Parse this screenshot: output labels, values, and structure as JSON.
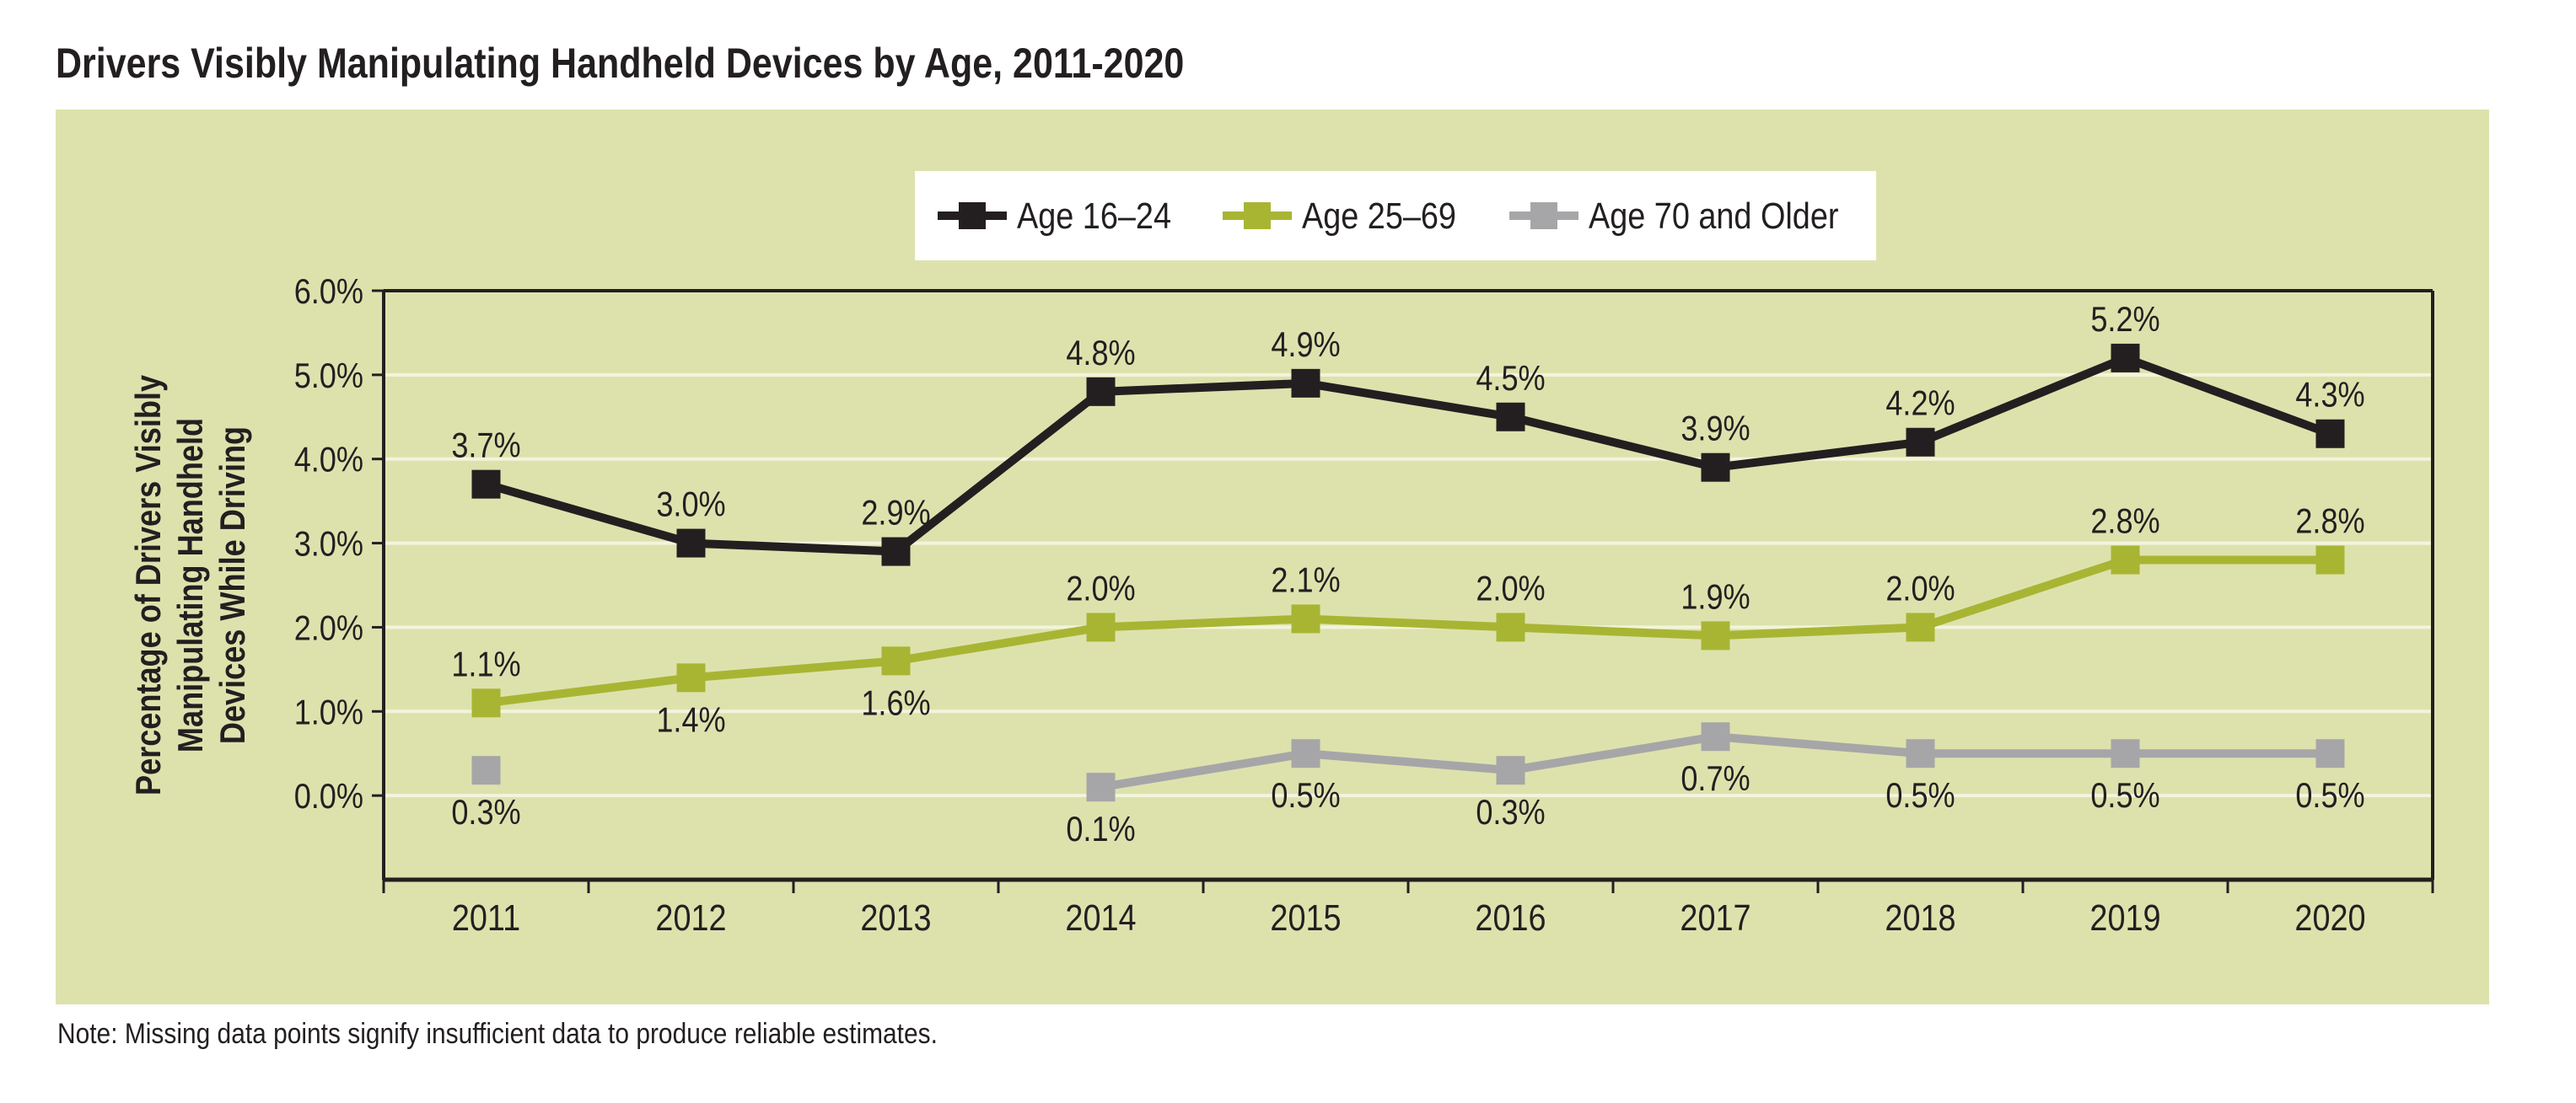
{
  "title": "Drivers Visibly Manipulating Handheld Devices by Age, 2011-2020",
  "note": "Note: Missing data points signify insufficient data to produce reliable estimates.",
  "colors": {
    "panel_background": "#dde2ad",
    "series_16_24": "#231f20",
    "series_25_69": "#a8b533",
    "series_70_plus": "#a6a6a8",
    "gridline": "#f2f4dc"
  },
  "chart_data": {
    "type": "line",
    "categories": [
      "2011",
      "2012",
      "2013",
      "2014",
      "2015",
      "2016",
      "2017",
      "2018",
      "2019",
      "2020"
    ],
    "ylabel": "Percentage of Drivers Visibly Manipulating Handheld Devices While Driving",
    "ylabel_lines": [
      "Percentage of Drivers Visibly",
      "Manipulating Handheld",
      "Devices While Driving"
    ],
    "xlabel": "",
    "ylim": [
      -1.0,
      6.0
    ],
    "yticks": [
      0.0,
      1.0,
      2.0,
      3.0,
      4.0,
      5.0,
      6.0
    ],
    "ytick_labels": [
      "0.0%",
      "1.0%",
      "2.0%",
      "3.0%",
      "4.0%",
      "5.0%",
      "6.0%"
    ],
    "grid": true,
    "legend_position": "top-center",
    "series": [
      {
        "name": "Age 16–24",
        "values": [
          3.7,
          3.0,
          2.9,
          4.8,
          4.9,
          4.5,
          3.9,
          4.2,
          5.2,
          4.3
        ],
        "labels": [
          "3.7%",
          "3.0%",
          "2.9%",
          "4.8%",
          "4.9%",
          "4.5%",
          "3.9%",
          "4.2%",
          "5.2%",
          "4.3%"
        ],
        "label_position": "above"
      },
      {
        "name": "Age 25–69",
        "values": [
          1.1,
          1.4,
          1.6,
          2.0,
          2.1,
          2.0,
          1.9,
          2.0,
          2.8,
          2.8
        ],
        "labels": [
          "1.1%",
          "1.4%",
          "1.6%",
          "2.0%",
          "2.1%",
          "2.0%",
          "1.9%",
          "2.0%",
          "2.8%",
          "2.8%"
        ],
        "label_sides": [
          "above",
          "below",
          "below",
          "above",
          "above",
          "above",
          "above",
          "above",
          "above",
          "above"
        ]
      },
      {
        "name": "Age 70 and Older",
        "values": [
          0.3,
          null,
          null,
          0.1,
          0.5,
          0.3,
          0.7,
          0.5,
          0.5,
          0.5
        ],
        "labels": [
          "0.3%",
          null,
          null,
          "0.1%",
          "0.5%",
          "0.3%",
          "0.7%",
          "0.5%",
          "0.5%",
          "0.5%"
        ],
        "label_position": "below"
      }
    ]
  }
}
